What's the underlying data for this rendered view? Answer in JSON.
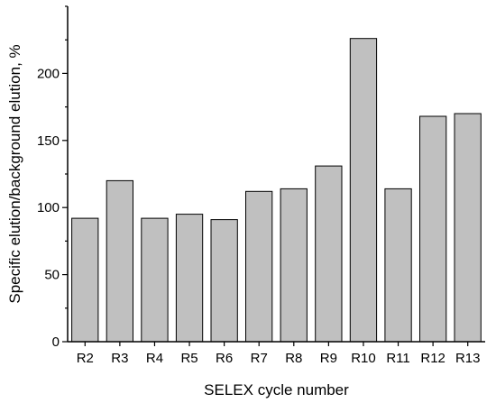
{
  "chart_data": {
    "type": "bar",
    "title": "",
    "xlabel": "SELEX cycle number",
    "ylabel": "Specific elution/background elution, %",
    "categories": [
      "R2",
      "R3",
      "R4",
      "R5",
      "R6",
      "R7",
      "R8",
      "R9",
      "R10",
      "R11",
      "R12",
      "R13"
    ],
    "values": [
      92,
      120,
      92,
      95,
      91,
      112,
      114,
      131,
      226,
      114,
      168,
      170
    ],
    "ylim": [
      0,
      250
    ],
    "yticks": [
      0,
      50,
      100,
      150,
      200
    ],
    "grid": false,
    "legend": "none",
    "colors": {
      "bar_fill": "#c0c0c0",
      "bar_stroke": "#000000",
      "axis": "#000000"
    }
  }
}
